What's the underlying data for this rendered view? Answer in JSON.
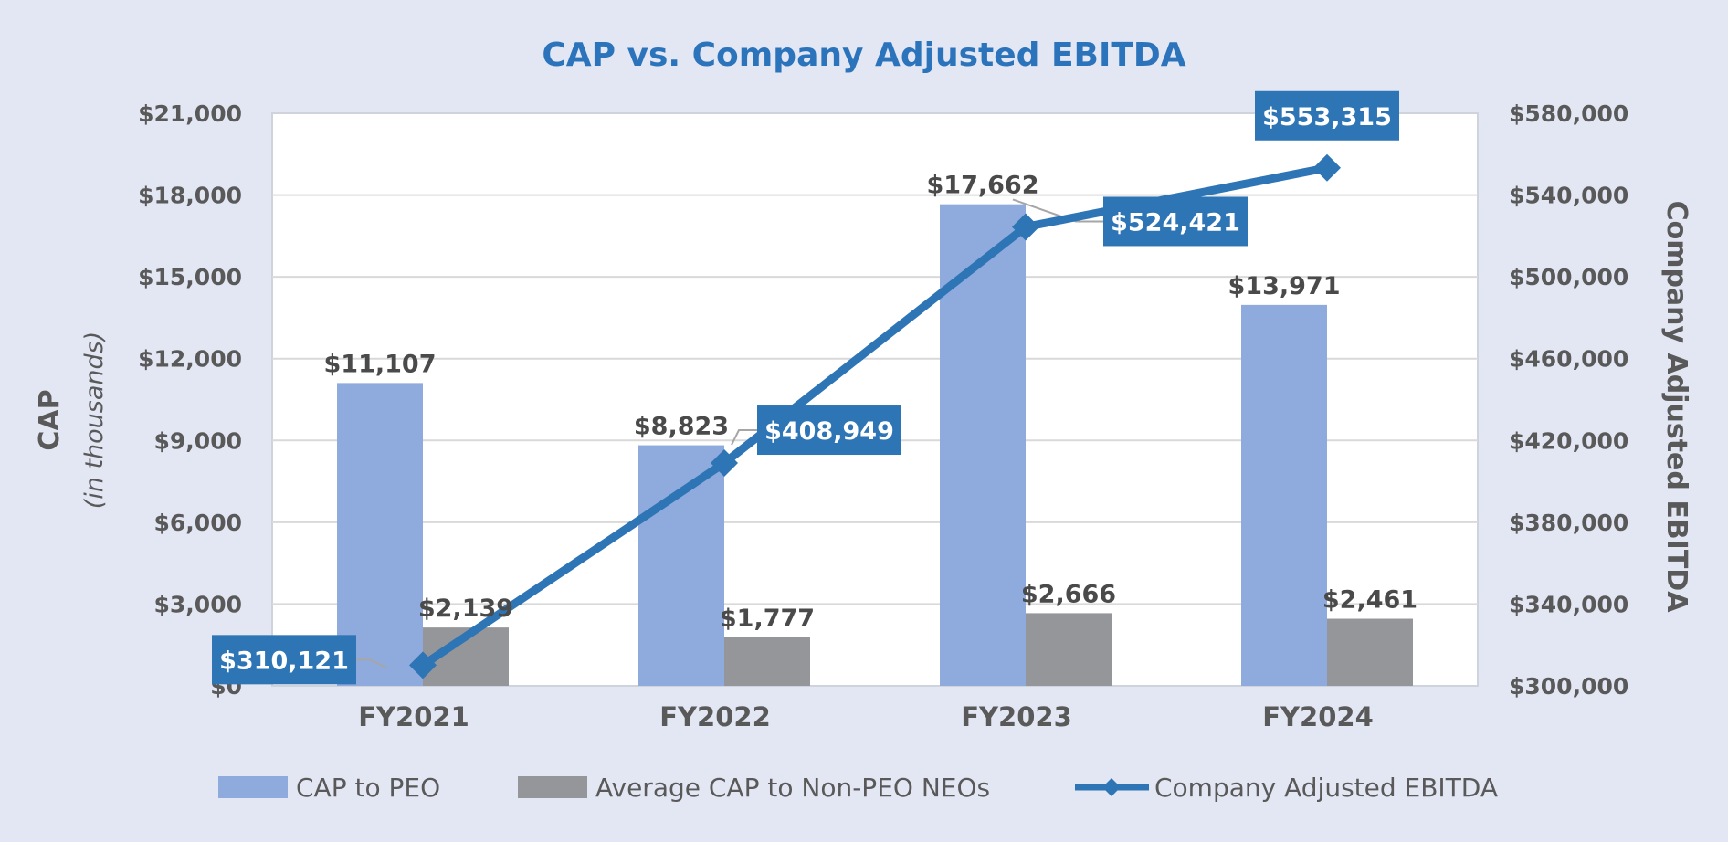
{
  "chart_data": {
    "type": "bar",
    "title": "CAP vs. Company Adjusted EBITDA",
    "categories": [
      "FY2021",
      "FY2022",
      "FY2023",
      "FY2024"
    ],
    "ylabel": "CAP",
    "ylabel_sub": "(in thousands)",
    "y2label": "Company Adjusted EBITDA",
    "ylim": [
      0,
      21000
    ],
    "y2lim": [
      300000,
      580000
    ],
    "yticks": [
      0,
      3000,
      6000,
      9000,
      12000,
      15000,
      18000,
      21000
    ],
    "ytick_labels": [
      "$0",
      "$3,000",
      "$6,000",
      "$9,000",
      "$12,000",
      "$15,000",
      "$18,000",
      "$21,000"
    ],
    "y2ticks": [
      300000,
      340000,
      380000,
      420000,
      460000,
      500000,
      540000,
      580000
    ],
    "y2tick_labels": [
      "$300,000",
      "$340,000",
      "$380,000",
      "$420,000",
      "$460,000",
      "$500,000",
      "$540,000",
      "$580,000"
    ],
    "series": [
      {
        "name": "CAP to PEO",
        "type": "bar",
        "axis": "left",
        "color": "#8faadc",
        "values": [
          11107,
          8823,
          17662,
          13971
        ],
        "labels": [
          "$11,107",
          "$8,823",
          "$17,662",
          "$13,971"
        ]
      },
      {
        "name": "Average CAP to Non-PEO NEOs",
        "type": "bar",
        "axis": "left",
        "color": "#959699",
        "values": [
          2139,
          1777,
          2666,
          2461
        ],
        "labels": [
          "$2,139",
          "$1,777",
          "$2,666",
          "$2,461"
        ]
      },
      {
        "name": "Company Adjusted EBITDA",
        "type": "line",
        "axis": "right",
        "color": "#2e75b6",
        "values": [
          310121,
          408949,
          524421,
          553315
        ],
        "labels": [
          "$310,121",
          "$408,949",
          "$524,421",
          "$553,315"
        ]
      }
    ],
    "legend": "bottom",
    "grid": true
  },
  "colors": {
    "background": "#e3e7f4",
    "plot_background": "#ffffff",
    "grid": "#d9d9d9",
    "title": "#2b73bb",
    "axis_text": "#595959"
  }
}
